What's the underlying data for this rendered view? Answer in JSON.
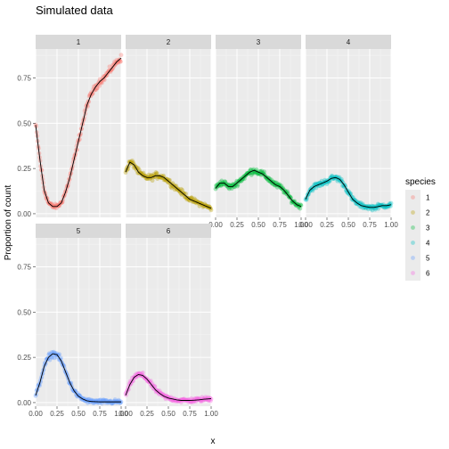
{
  "chart_data": {
    "type": "scatter",
    "title": "Simulated data",
    "xlabel": "x",
    "ylabel": "Proportion of count",
    "xlim": [
      0,
      1
    ],
    "ylim": [
      -0.02,
      0.91
    ],
    "x_ticks": [
      0,
      0.25,
      0.5,
      0.75,
      1
    ],
    "x_tick_labels": [
      "0.00",
      "0.25",
      "0.50",
      "0.75",
      "1.00"
    ],
    "y_ticks": [
      0,
      0.25,
      0.5,
      0.75
    ],
    "y_tick_labels": [
      "0.00",
      "0.25",
      "0.50",
      "0.75"
    ],
    "grid": true,
    "legend": {
      "title": "species",
      "placement": "right"
    },
    "facets": [
      {
        "label": "1",
        "color": "#F8766D",
        "curve_x": [
          0,
          0.05,
          0.1,
          0.15,
          0.2,
          0.25,
          0.3,
          0.35,
          0.4,
          0.45,
          0.5,
          0.55,
          0.6,
          0.65,
          0.7,
          0.75,
          0.8,
          0.85,
          0.9,
          0.95,
          1.0
        ],
        "curve_y": [
          0.49,
          0.3,
          0.13,
          0.06,
          0.04,
          0.04,
          0.06,
          0.12,
          0.2,
          0.3,
          0.4,
          0.5,
          0.6,
          0.66,
          0.7,
          0.73,
          0.75,
          0.78,
          0.81,
          0.84,
          0.86
        ]
      },
      {
        "label": "2",
        "color": "#B79F00",
        "curve_x": [
          0,
          0.05,
          0.1,
          0.15,
          0.2,
          0.25,
          0.3,
          0.35,
          0.4,
          0.45,
          0.5,
          0.55,
          0.6,
          0.65,
          0.7,
          0.75,
          0.8,
          0.85,
          0.9,
          0.95,
          1.0
        ],
        "curve_y": [
          0.23,
          0.285,
          0.27,
          0.23,
          0.21,
          0.2,
          0.2,
          0.21,
          0.21,
          0.2,
          0.18,
          0.16,
          0.14,
          0.12,
          0.1,
          0.08,
          0.07,
          0.06,
          0.05,
          0.04,
          0.03
        ]
      },
      {
        "label": "3",
        "color": "#00BA38",
        "curve_x": [
          0,
          0.05,
          0.1,
          0.15,
          0.2,
          0.25,
          0.3,
          0.35,
          0.4,
          0.45,
          0.5,
          0.55,
          0.6,
          0.65,
          0.7,
          0.75,
          0.8,
          0.85,
          0.9,
          0.95,
          1.0
        ],
        "curve_y": [
          0.14,
          0.17,
          0.17,
          0.15,
          0.15,
          0.17,
          0.19,
          0.21,
          0.23,
          0.24,
          0.23,
          0.22,
          0.2,
          0.18,
          0.16,
          0.15,
          0.13,
          0.1,
          0.07,
          0.05,
          0.04
        ]
      },
      {
        "label": "4",
        "color": "#00BFC4",
        "curve_x": [
          0,
          0.05,
          0.1,
          0.15,
          0.2,
          0.25,
          0.3,
          0.35,
          0.4,
          0.45,
          0.5,
          0.55,
          0.6,
          0.65,
          0.7,
          0.75,
          0.8,
          0.85,
          0.9,
          0.95,
          1.0
        ],
        "curve_y": [
          0.08,
          0.13,
          0.15,
          0.16,
          0.17,
          0.18,
          0.195,
          0.2,
          0.19,
          0.16,
          0.12,
          0.08,
          0.06,
          0.045,
          0.04,
          0.035,
          0.035,
          0.04,
          0.045,
          0.045,
          0.05
        ]
      },
      {
        "label": "5",
        "color": "#619CFF",
        "curve_x": [
          0,
          0.05,
          0.1,
          0.15,
          0.2,
          0.25,
          0.3,
          0.35,
          0.4,
          0.45,
          0.5,
          0.55,
          0.6,
          0.65,
          0.7,
          0.75,
          0.8,
          0.85,
          0.9,
          0.95,
          1.0
        ],
        "curve_y": [
          0.04,
          0.11,
          0.2,
          0.25,
          0.27,
          0.265,
          0.23,
          0.17,
          0.11,
          0.065,
          0.035,
          0.02,
          0.01,
          0.006,
          0.005,
          0.004,
          0.004,
          0.004,
          0.004,
          0.004,
          0.004
        ]
      },
      {
        "label": "6",
        "color": "#F564E3",
        "curve_x": [
          0,
          0.05,
          0.1,
          0.15,
          0.2,
          0.25,
          0.3,
          0.35,
          0.4,
          0.45,
          0.5,
          0.55,
          0.6,
          0.65,
          0.7,
          0.75,
          0.8,
          0.85,
          0.9,
          0.95,
          1.0
        ],
        "curve_y": [
          0.04,
          0.1,
          0.14,
          0.155,
          0.15,
          0.13,
          0.1,
          0.07,
          0.05,
          0.035,
          0.025,
          0.02,
          0.015,
          0.012,
          0.012,
          0.012,
          0.013,
          0.015,
          0.018,
          0.02,
          0.022
        ]
      }
    ]
  }
}
